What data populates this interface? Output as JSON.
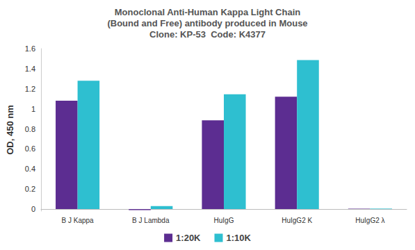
{
  "chart_data": {
    "type": "bar",
    "title": "Monoclonal Anti-Human Kappa Light Chain\n(Bound and Free) antibody produced in Mouse\nClone: KP-53  Code: K4377",
    "y_label": "OD, 450 nm",
    "categories": [
      "B J Kappa",
      "B J Lambda",
      "HuIgG",
      "HuIgG2 K",
      "HuIgG2 λ"
    ],
    "series": [
      {
        "name": "1:20K",
        "color": "#5c2d91",
        "values": [
          1.08,
          -0.01,
          0.885,
          1.12,
          0.005
        ]
      },
      {
        "name": "1:10K",
        "color": "#2ebfd0",
        "values": [
          1.28,
          0.03,
          1.145,
          1.485,
          0.005
        ]
      }
    ],
    "ylim": [
      -0.02,
      1.6
    ],
    "yticks": [
      0,
      0.2,
      0.4,
      0.6,
      0.8,
      1,
      1.2,
      1.4,
      1.6
    ],
    "grid": false,
    "legend": "bottom"
  }
}
